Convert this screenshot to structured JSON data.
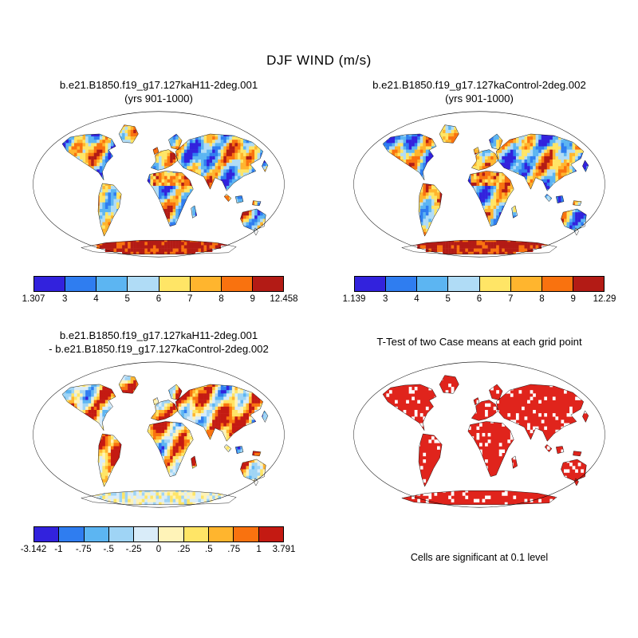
{
  "title": "DJF WIND (m/s)",
  "panels": [
    {
      "id": "case1",
      "title_lines": [
        "b.e21.B1850.f19_g17.127kaH11-2deg.001",
        "(yrs 901-1000)"
      ],
      "colorbar": {
        "ticks": [
          "1.307",
          "3",
          "4",
          "5",
          "6",
          "7",
          "8",
          "9",
          "12.458"
        ],
        "colors": [
          "#3222dd",
          "#2f7df0",
          "#5cb5f2",
          "#b0dcf6",
          "#ffe566",
          "#ffb52e",
          "#f9720f",
          "#b31b15"
        ]
      }
    },
    {
      "id": "case2",
      "title_lines": [
        "b.e21.B1850.f19_g17.127kaControl-2deg.002",
        "(yrs 901-1000)"
      ],
      "colorbar": {
        "ticks": [
          "1.139",
          "3",
          "4",
          "5",
          "6",
          "7",
          "8",
          "9",
          "12.29"
        ],
        "colors": [
          "#3222dd",
          "#2f7df0",
          "#5cb5f2",
          "#b0dcf6",
          "#ffe566",
          "#ffb52e",
          "#f9720f",
          "#b31b15"
        ]
      }
    },
    {
      "id": "diff",
      "title_lines": [
        "b.e21.B1850.f19_g17.127kaH11-2deg.001",
        "- b.e21.B1850.f19_g17.127kaControl-2deg.002"
      ],
      "colorbar": {
        "ticks": [
          "-3.142",
          "-1",
          "-.75",
          "-.5",
          "-.25",
          "0",
          ".25",
          ".5",
          ".75",
          "1",
          "3.791"
        ],
        "colors": [
          "#3222dd",
          "#2f7df0",
          "#5cb5f2",
          "#9fd4f5",
          "#d9ecf9",
          "#fff3b8",
          "#ffe566",
          "#ffb52e",
          "#f9720f",
          "#c41a12"
        ]
      }
    },
    {
      "id": "ttest",
      "title_lines": [
        "T-Test of two Case means at each grid point"
      ],
      "caption": "Cells are significant at 0.1 level",
      "significant_color": "#e0241c"
    }
  ],
  "chart_data": [
    {
      "type": "heatmap",
      "panel": "top-left",
      "title": "b.e21.B1850.f19_g17.127kaH11-2deg.001",
      "subtitle": "(yrs 901-1000)",
      "variable": "WIND",
      "season": "DJF",
      "units": "m/s",
      "value_range": [
        1.307,
        12.458
      ],
      "colorbar_ticks": [
        1.307,
        3,
        4,
        5,
        6,
        7,
        8,
        9,
        12.458
      ],
      "colorbar_colors": [
        "#3222dd",
        "#2f7df0",
        "#5cb5f2",
        "#b0dcf6",
        "#ffe566",
        "#ffb52e",
        "#f9720f",
        "#b31b15"
      ]
    },
    {
      "type": "heatmap",
      "panel": "top-right",
      "title": "b.e21.B1850.f19_g17.127kaControl-2deg.002",
      "subtitle": "(yrs 901-1000)",
      "variable": "WIND",
      "season": "DJF",
      "units": "m/s",
      "value_range": [
        1.139,
        12.29
      ],
      "colorbar_ticks": [
        1.139,
        3,
        4,
        5,
        6,
        7,
        8,
        9,
        12.29
      ],
      "colorbar_colors": [
        "#3222dd",
        "#2f7df0",
        "#5cb5f2",
        "#b0dcf6",
        "#ffe566",
        "#ffb52e",
        "#f9720f",
        "#b31b15"
      ]
    },
    {
      "type": "heatmap",
      "panel": "bottom-left",
      "title": "b.e21.B1850.f19_g17.127kaH11-2deg.001 - b.e21.B1850.f19_g17.127kaControl-2deg.002",
      "variable": "WIND difference",
      "units": "m/s",
      "value_range": [
        -3.142,
        3.791
      ],
      "colorbar_ticks": [
        -3.142,
        -1,
        -0.75,
        -0.5,
        -0.25,
        0,
        0.25,
        0.5,
        0.75,
        1,
        3.791
      ],
      "colorbar_colors": [
        "#3222dd",
        "#2f7df0",
        "#5cb5f2",
        "#9fd4f5",
        "#d9ecf9",
        "#fff3b8",
        "#ffe566",
        "#ffb52e",
        "#f9720f",
        "#c41a12"
      ]
    },
    {
      "type": "map",
      "panel": "bottom-right",
      "title": "T-Test of two Case means at each grid point",
      "annotation": "Cells are significant at 0.1 level",
      "significant_color": "#e0241c"
    }
  ]
}
